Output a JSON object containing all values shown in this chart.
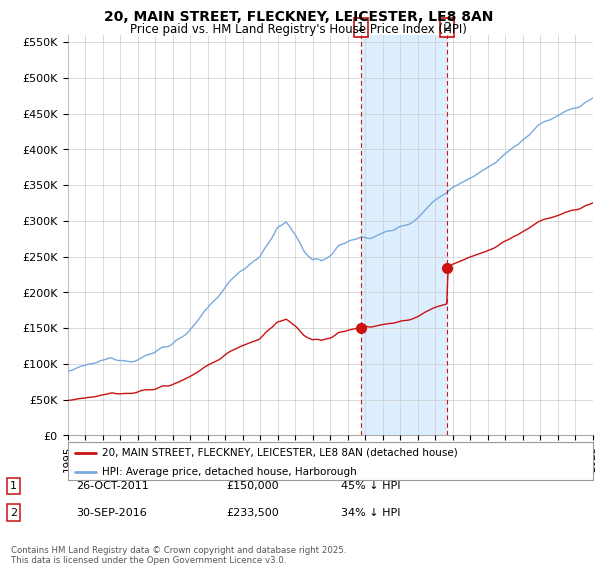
{
  "title": "20, MAIN STREET, FLECKNEY, LEICESTER, LE8 8AN",
  "subtitle": "Price paid vs. HM Land Registry's House Price Index (HPI)",
  "background_color": "#ffffff",
  "grid_color": "#cccccc",
  "hpi_color": "#7aaadd",
  "price_color": "#cc1111",
  "shade_color": "#ddeeff",
  "t1_idx": 201,
  "t1_price": 150000,
  "t1_date": "26-OCT-2011",
  "t1_hpi_pct": "45% ↓ HPI",
  "t2_idx": 260,
  "t2_price": 233500,
  "t2_date": "30-SEP-2016",
  "t2_hpi_pct": "34% ↓ HPI",
  "legend_property": "20, MAIN STREET, FLECKNEY, LEICESTER, LE8 8AN (detached house)",
  "legend_hpi": "HPI: Average price, detached house, Harborough",
  "footer": "Contains HM Land Registry data © Crown copyright and database right 2025.\nThis data is licensed under the Open Government Licence v3.0.",
  "ylim_max": 560000,
  "yticks": [
    0,
    50000,
    100000,
    150000,
    200000,
    250000,
    300000,
    350000,
    400000,
    450000,
    500000,
    550000
  ],
  "ytick_labels": [
    "£0",
    "£50K",
    "£100K",
    "£150K",
    "£200K",
    "£250K",
    "£300K",
    "£350K",
    "£400K",
    "£450K",
    "£500K",
    "£550K"
  ],
  "num_months": 361,
  "x_start_year": 1995,
  "x_end_year": 2025
}
